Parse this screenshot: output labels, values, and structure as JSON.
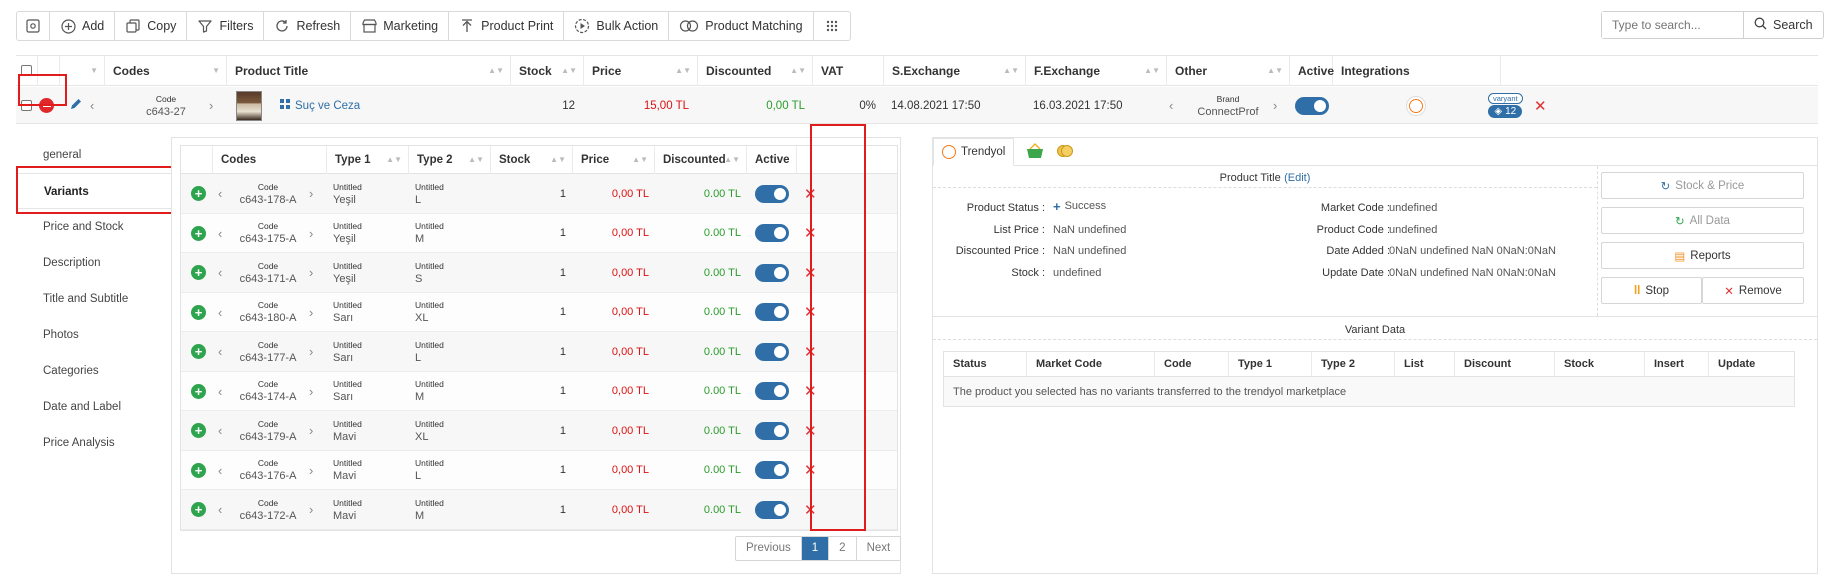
{
  "toolbar": {
    "add": "Add",
    "copy": "Copy",
    "filters": "Filters",
    "refresh": "Refresh",
    "marketing": "Marketing",
    "product_print": "Product Print",
    "bulk_action": "Bulk Action",
    "product_matching": "Product Matching"
  },
  "search": {
    "placeholder": "Type to search...",
    "button": "Search"
  },
  "grid": {
    "headers": {
      "codes": "Codes",
      "product_title": "Product Title",
      "stock": "Stock",
      "price": "Price",
      "discounted": "Discounted",
      "vat": "VAT",
      "s_exchange": "S.Exchange",
      "f_exchange": "F.Exchange",
      "other": "Other",
      "active": "Active",
      "integrations": "Integrations"
    },
    "row": {
      "code_label": "Code",
      "code": "c643-27",
      "title": "Suç ve Ceza",
      "stock": "12",
      "price": "15,00 TL",
      "discounted": "0,00 TL",
      "vat": "0%",
      "s_exchange": "14.08.2021 17:50",
      "f_exchange": "16.03.2021 17:50",
      "brand_label": "Brand",
      "brand": "ConnectProf",
      "variant_badge": "varyant",
      "variant_count": "12"
    }
  },
  "nav": {
    "items": [
      "general",
      "Variants",
      "Price and Stock",
      "Description",
      "Title and Subtitle",
      "Photos",
      "Categories",
      "Date and Label",
      "Price Analysis"
    ]
  },
  "variants": {
    "headers": {
      "codes": "Codes",
      "type1": "Type 1",
      "type2": "Type 2",
      "stock": "Stock",
      "price": "Price",
      "discounted": "Discounted",
      "active": "Active"
    },
    "code_label": "Code",
    "type_label": "Untitled",
    "rows": [
      {
        "code": "c643-178-A",
        "type1": "Yeşil",
        "type2": "L",
        "stock": "1",
        "price": "0,00 TL",
        "discounted": "0.00 TL"
      },
      {
        "code": "c643-175-A",
        "type1": "Yeşil",
        "type2": "M",
        "stock": "1",
        "price": "0,00 TL",
        "discounted": "0.00 TL"
      },
      {
        "code": "c643-171-A",
        "type1": "Yeşil",
        "type2": "S",
        "stock": "1",
        "price": "0,00 TL",
        "discounted": "0.00 TL"
      },
      {
        "code": "c643-180-A",
        "type1": "Sarı",
        "type2": "XL",
        "stock": "1",
        "price": "0,00 TL",
        "discounted": "0.00 TL"
      },
      {
        "code": "c643-177-A",
        "type1": "Sarı",
        "type2": "L",
        "stock": "1",
        "price": "0,00 TL",
        "discounted": "0.00 TL"
      },
      {
        "code": "c643-174-A",
        "type1": "Sarı",
        "type2": "M",
        "stock": "1",
        "price": "0,00 TL",
        "discounted": "0.00 TL"
      },
      {
        "code": "c643-179-A",
        "type1": "Mavi",
        "type2": "XL",
        "stock": "1",
        "price": "0,00 TL",
        "discounted": "0.00 TL"
      },
      {
        "code": "c643-176-A",
        "type1": "Mavi",
        "type2": "L",
        "stock": "1",
        "price": "0,00 TL",
        "discounted": "0.00 TL"
      },
      {
        "code": "c643-172-A",
        "type1": "Mavi",
        "type2": "M",
        "stock": "1",
        "price": "0,00 TL",
        "discounted": "0.00 TL"
      }
    ],
    "pager": {
      "previous": "Previous",
      "page1": "1",
      "page2": "2",
      "next": "Next"
    }
  },
  "marketplace": {
    "tab": "Trendyol",
    "product_title": "Product Title",
    "edit": "(Edit)",
    "fields": {
      "status_label": "Product Status :",
      "status_value": "Success",
      "list_price_label": "List Price :",
      "list_price_value": "NaN undefined",
      "discounted_label": "Discounted Price :",
      "discounted_value": "NaN undefined",
      "stock_label": "Stock :",
      "stock_value": "undefined",
      "market_code_label": "Market Code :",
      "market_code_value": "undefined",
      "product_code_label": "Product Code :",
      "product_code_value": "undefined",
      "date_added_label": "Date Added :",
      "date_added_value": "0NaN undefined NaN 0NaN:0NaN",
      "update_date_label": "Update Date :",
      "update_date_value": "0NaN undefined NaN 0NaN:0NaN"
    },
    "buttons": {
      "stock_price": "Stock & Price",
      "all_data": "All Data",
      "reports": "Reports",
      "stop": "Stop",
      "remove": "Remove"
    },
    "variant_data": {
      "title": "Variant Data",
      "headers": [
        "Status",
        "Market Code",
        "Code",
        "Type 1",
        "Type 2",
        "List",
        "Discount",
        "Stock",
        "Insert",
        "Update"
      ],
      "empty": "The product you selected has no variants transferred to the trendyol marketplace"
    }
  },
  "colors": {
    "accent": "#2f6ea6",
    "danger": "#e01c1c",
    "success": "#2ea44f",
    "trendyol": "#f27a1a"
  }
}
